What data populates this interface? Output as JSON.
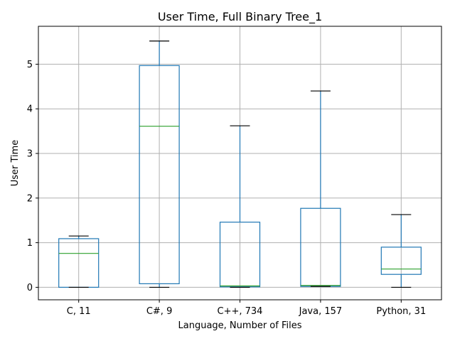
{
  "chart_data": {
    "type": "box",
    "title": "User Time, Full Binary Tree_1",
    "xlabel": "Language, Number of Files",
    "ylabel": "User Time",
    "ylim": [
      -0.28,
      5.85
    ],
    "yticks": [
      0,
      1,
      2,
      3,
      4,
      5
    ],
    "grid": true,
    "colors": {
      "box": "#1f77b4",
      "median": "#2ca02c",
      "cap": "#000000",
      "grid": "#b0b0b0"
    },
    "categories": [
      "C, 11",
      "C#, 9",
      "C++, 734",
      "Java, 157",
      "Python, 31"
    ],
    "boxes": [
      {
        "category": "C, 11",
        "whisker_low": 0.0,
        "q1": 0.0,
        "median": 0.76,
        "q3": 1.09,
        "whisker_high": 1.15
      },
      {
        "category": "C#, 9",
        "whisker_low": 0.0,
        "q1": 0.08,
        "median": 3.61,
        "q3": 4.97,
        "whisker_high": 5.52
      },
      {
        "category": "C++, 734",
        "whisker_low": 0.0,
        "q1": 0.01,
        "median": 0.03,
        "q3": 1.46,
        "whisker_high": 3.62
      },
      {
        "category": "Java, 157",
        "whisker_low": 0.02,
        "q1": 0.02,
        "median": 0.04,
        "q3": 1.77,
        "whisker_high": 4.4
      },
      {
        "category": "Python, 31",
        "whisker_low": 0.0,
        "q1": 0.29,
        "median": 0.41,
        "q3": 0.9,
        "whisker_high": 1.63
      }
    ]
  }
}
